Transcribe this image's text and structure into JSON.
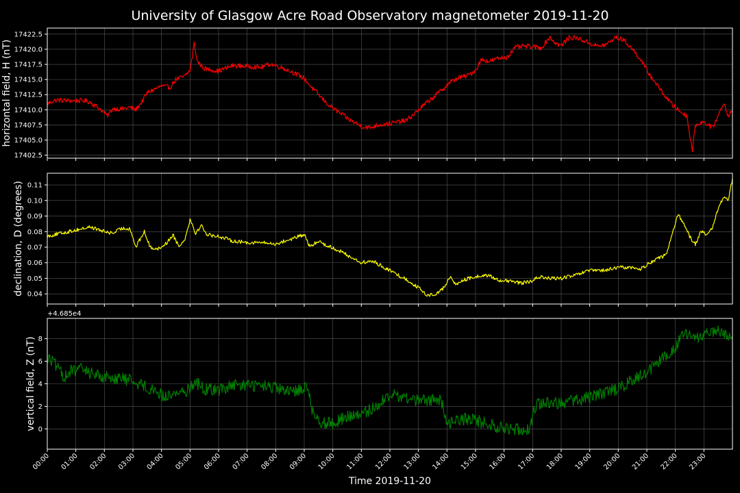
{
  "chart_data": {
    "type": "line",
    "title": "University of Glasgow Acre Road Observatory magnetometer 2019-11-20",
    "xlabel": "Time 2019-11-20",
    "x_ticks": [
      "00:00",
      "01:00",
      "02:00",
      "03:00",
      "04:00",
      "05:00",
      "06:00",
      "07:00",
      "08:00",
      "09:00",
      "10:00",
      "11:00",
      "12:00",
      "13:00",
      "14:00",
      "15:00",
      "16:00",
      "17:00",
      "18:00",
      "19:00",
      "20:00",
      "21:00",
      "22:00",
      "23:00"
    ],
    "xlim_hours": [
      0,
      24
    ],
    "grid": true,
    "background": "#000000",
    "grid_color": "#5a5a5a",
    "panels": [
      {
        "ylabel": "horizontal field, H (nT)",
        "color": "#ff0000",
        "ylim": [
          17402,
          17423.5
        ],
        "yticks": [
          17402.5,
          17405.0,
          17407.5,
          17410.0,
          17412.5,
          17415.0,
          17417.5,
          17420.0,
          17422.5
        ],
        "ytick_labels": [
          "17402.5",
          "17405.0",
          "17407.5",
          "17410.0",
          "17412.5",
          "17415.0",
          "17417.5",
          "17420.0",
          "17422.5"
        ],
        "offset_label": "",
        "noise": 0.4,
        "points": [
          [
            0.0,
            17411.0
          ],
          [
            0.3,
            17411.6
          ],
          [
            0.8,
            17411.5
          ],
          [
            1.3,
            17411.5
          ],
          [
            1.5,
            17411.3
          ],
          [
            1.8,
            17410.3
          ],
          [
            2.0,
            17409.5
          ],
          [
            2.1,
            17409.0
          ],
          [
            2.3,
            17410.2
          ],
          [
            2.6,
            17410.1
          ],
          [
            2.9,
            17410.4
          ],
          [
            3.1,
            17410.0
          ],
          [
            3.3,
            17411.2
          ],
          [
            3.5,
            17412.8
          ],
          [
            3.8,
            17413.5
          ],
          [
            4.0,
            17413.9
          ],
          [
            4.3,
            17413.7
          ],
          [
            4.5,
            17415.0
          ],
          [
            4.8,
            17415.5
          ],
          [
            5.0,
            17416.5
          ],
          [
            5.15,
            17421.0
          ],
          [
            5.25,
            17418.0
          ],
          [
            5.5,
            17416.8
          ],
          [
            6.0,
            17416.4
          ],
          [
            6.5,
            17417.3
          ],
          [
            7.0,
            17417.2
          ],
          [
            7.5,
            17417.0
          ],
          [
            7.8,
            17417.6
          ],
          [
            8.2,
            17417.0
          ],
          [
            8.6,
            17416.2
          ],
          [
            9.0,
            17415.2
          ],
          [
            9.2,
            17414.0
          ],
          [
            9.5,
            17412.5
          ],
          [
            9.8,
            17411.0
          ],
          [
            10.2,
            17409.6
          ],
          [
            10.6,
            17408.3
          ],
          [
            11.0,
            17407.3
          ],
          [
            11.3,
            17407.0
          ],
          [
            11.6,
            17407.5
          ],
          [
            12.0,
            17407.7
          ],
          [
            12.3,
            17408.0
          ],
          [
            12.6,
            17408.3
          ],
          [
            12.9,
            17409.5
          ],
          [
            13.2,
            17410.8
          ],
          [
            13.5,
            17412.0
          ],
          [
            13.8,
            17413.2
          ],
          [
            14.1,
            17414.5
          ],
          [
            14.4,
            17415.3
          ],
          [
            14.7,
            17415.6
          ],
          [
            15.0,
            17416.5
          ],
          [
            15.2,
            17418.3
          ],
          [
            15.5,
            17418.0
          ],
          [
            15.8,
            17418.5
          ],
          [
            16.1,
            17418.7
          ],
          [
            16.4,
            17420.3
          ],
          [
            16.7,
            17420.5
          ],
          [
            17.0,
            17420.4
          ],
          [
            17.3,
            17420.2
          ],
          [
            17.6,
            17422.0
          ],
          [
            17.8,
            17421.0
          ],
          [
            18.0,
            17420.6
          ],
          [
            18.3,
            17422.0
          ],
          [
            18.6,
            17421.8
          ],
          [
            19.0,
            17421.0
          ],
          [
            19.3,
            17420.5
          ],
          [
            19.6,
            17420.8
          ],
          [
            19.9,
            17422.0
          ],
          [
            20.2,
            17421.5
          ],
          [
            20.5,
            17420.0
          ],
          [
            20.8,
            17418.2
          ],
          [
            21.0,
            17416.5
          ],
          [
            21.3,
            17414.5
          ],
          [
            21.6,
            17412.5
          ],
          [
            21.9,
            17410.8
          ],
          [
            22.2,
            17409.6
          ],
          [
            22.4,
            17409.0
          ],
          [
            22.6,
            17403.2
          ],
          [
            22.7,
            17407.5
          ],
          [
            23.0,
            17408.0
          ],
          [
            23.3,
            17407.0
          ],
          [
            23.5,
            17409.0
          ],
          [
            23.7,
            17411.2
          ],
          [
            23.85,
            17409.0
          ],
          [
            24.0,
            17410.0
          ]
        ]
      },
      {
        "ylabel": "declination, D (degrees)",
        "color": "#ffff00",
        "ylim": [
          0.0335,
          0.1175
        ],
        "yticks": [
          0.04,
          0.05,
          0.06,
          0.07,
          0.08,
          0.09,
          0.1,
          0.11
        ],
        "ytick_labels": [
          "0.04",
          "0.05",
          "0.06",
          "0.07",
          "0.08",
          "0.09",
          "0.10",
          "0.11"
        ],
        "offset_label": "",
        "noise": 0.0012,
        "points": [
          [
            0.0,
            0.077
          ],
          [
            0.5,
            0.079
          ],
          [
            1.0,
            0.081
          ],
          [
            1.5,
            0.083
          ],
          [
            2.0,
            0.08
          ],
          [
            2.3,
            0.079
          ],
          [
            2.6,
            0.082
          ],
          [
            2.9,
            0.082
          ],
          [
            3.1,
            0.07
          ],
          [
            3.4,
            0.08
          ],
          [
            3.6,
            0.07
          ],
          [
            3.9,
            0.069
          ],
          [
            4.2,
            0.073
          ],
          [
            4.4,
            0.078
          ],
          [
            4.6,
            0.071
          ],
          [
            4.8,
            0.074
          ],
          [
            5.0,
            0.088
          ],
          [
            5.2,
            0.079
          ],
          [
            5.4,
            0.084
          ],
          [
            5.6,
            0.078
          ],
          [
            6.0,
            0.077
          ],
          [
            6.5,
            0.074
          ],
          [
            7.0,
            0.073
          ],
          [
            7.5,
            0.073
          ],
          [
            8.0,
            0.072
          ],
          [
            8.5,
            0.075
          ],
          [
            9.0,
            0.078
          ],
          [
            9.2,
            0.07
          ],
          [
            9.5,
            0.074
          ],
          [
            9.8,
            0.071
          ],
          [
            10.2,
            0.068
          ],
          [
            10.6,
            0.064
          ],
          [
            11.0,
            0.06
          ],
          [
            11.4,
            0.061
          ],
          [
            11.8,
            0.057
          ],
          [
            12.2,
            0.053
          ],
          [
            12.6,
            0.049
          ],
          [
            13.0,
            0.044
          ],
          [
            13.3,
            0.039
          ],
          [
            13.6,
            0.04
          ],
          [
            13.9,
            0.044
          ],
          [
            14.1,
            0.051
          ],
          [
            14.3,
            0.046
          ],
          [
            14.6,
            0.049
          ],
          [
            15.0,
            0.051
          ],
          [
            15.4,
            0.052
          ],
          [
            15.8,
            0.049
          ],
          [
            16.2,
            0.048
          ],
          [
            16.6,
            0.047
          ],
          [
            17.0,
            0.048
          ],
          [
            17.2,
            0.051
          ],
          [
            17.6,
            0.05
          ],
          [
            18.0,
            0.05
          ],
          [
            18.5,
            0.052
          ],
          [
            19.0,
            0.055
          ],
          [
            19.5,
            0.055
          ],
          [
            20.0,
            0.057
          ],
          [
            20.4,
            0.057
          ],
          [
            20.8,
            0.056
          ],
          [
            21.1,
            0.06
          ],
          [
            21.4,
            0.063
          ],
          [
            21.7,
            0.065
          ],
          [
            21.9,
            0.08
          ],
          [
            22.1,
            0.091
          ],
          [
            22.3,
            0.085
          ],
          [
            22.5,
            0.077
          ],
          [
            22.7,
            0.072
          ],
          [
            22.9,
            0.08
          ],
          [
            23.1,
            0.078
          ],
          [
            23.3,
            0.082
          ],
          [
            23.5,
            0.095
          ],
          [
            23.7,
            0.103
          ],
          [
            23.85,
            0.1
          ],
          [
            24.0,
            0.114
          ]
        ]
      },
      {
        "ylabel": "vertical field, Z (nT)",
        "color": "#008000",
        "ylim": [
          -1.8,
          9.8
        ],
        "yticks": [
          0,
          2,
          4,
          6,
          8
        ],
        "ytick_labels": [
          "0",
          "2",
          "4",
          "6",
          "8"
        ],
        "offset_label": "+4.685e4",
        "noise": 0.55,
        "points": [
          [
            0.0,
            6.3
          ],
          [
            0.2,
            6.0
          ],
          [
            0.4,
            5.2
          ],
          [
            0.6,
            4.6
          ],
          [
            0.8,
            5.1
          ],
          [
            1.2,
            5.3
          ],
          [
            1.6,
            4.9
          ],
          [
            2.0,
            4.6
          ],
          [
            2.5,
            4.5
          ],
          [
            3.0,
            4.3
          ],
          [
            3.4,
            3.8
          ],
          [
            3.8,
            3.4
          ],
          [
            4.1,
            2.8
          ],
          [
            4.5,
            3.2
          ],
          [
            4.9,
            3.4
          ],
          [
            5.2,
            4.2
          ],
          [
            5.5,
            3.5
          ],
          [
            6.0,
            3.5
          ],
          [
            6.5,
            3.8
          ],
          [
            7.0,
            3.9
          ],
          [
            7.5,
            3.8
          ],
          [
            8.0,
            3.6
          ],
          [
            8.5,
            3.2
          ],
          [
            8.8,
            3.5
          ],
          [
            9.1,
            3.8
          ],
          [
            9.3,
            1.5
          ],
          [
            9.6,
            0.6
          ],
          [
            10.0,
            0.5
          ],
          [
            10.5,
            1.1
          ],
          [
            11.0,
            1.2
          ],
          [
            11.5,
            2.0
          ],
          [
            12.0,
            3.0
          ],
          [
            12.5,
            2.8
          ],
          [
            13.0,
            2.5
          ],
          [
            13.5,
            2.6
          ],
          [
            13.8,
            2.5
          ],
          [
            14.0,
            0.5
          ],
          [
            14.3,
            0.8
          ],
          [
            14.8,
            0.9
          ],
          [
            15.2,
            0.6
          ],
          [
            15.6,
            0.3
          ],
          [
            16.0,
            0.0
          ],
          [
            16.5,
            0.0
          ],
          [
            16.9,
            0.0
          ],
          [
            17.1,
            2.1
          ],
          [
            17.4,
            2.4
          ],
          [
            18.0,
            2.3
          ],
          [
            18.5,
            2.5
          ],
          [
            19.0,
            2.8
          ],
          [
            19.5,
            3.2
          ],
          [
            20.0,
            3.6
          ],
          [
            20.5,
            4.3
          ],
          [
            21.0,
            5.0
          ],
          [
            21.5,
            6.1
          ],
          [
            22.0,
            7.3
          ],
          [
            22.3,
            8.5
          ],
          [
            22.6,
            8.0
          ],
          [
            23.0,
            8.3
          ],
          [
            23.5,
            8.6
          ],
          [
            23.8,
            8.2
          ],
          [
            24.0,
            7.8
          ]
        ]
      }
    ]
  }
}
